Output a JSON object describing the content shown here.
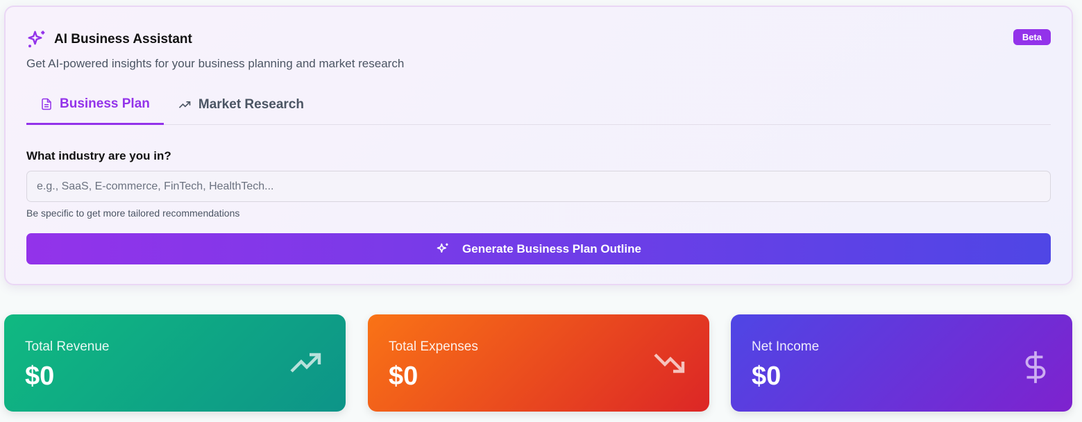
{
  "assistant": {
    "title": "AI Business Assistant",
    "badge": "Beta",
    "subtitle": "Get AI-powered insights for your business planning and market research",
    "tabs": [
      {
        "label": "Business Plan",
        "icon": "file-text-icon",
        "active": true
      },
      {
        "label": "Market Research",
        "icon": "trending-up-icon",
        "active": false
      }
    ],
    "field_label": "What industry are you in?",
    "input_value": "",
    "input_placeholder": "e.g., SaaS, E-commerce, FinTech, HealthTech...",
    "hint": "Be specific to get more tailored recommendations",
    "generate_label": "Generate Business Plan Outline",
    "accent": "#9333ea"
  },
  "stats": [
    {
      "label": "Total Revenue",
      "value": "$0",
      "icon": "trending-up-icon"
    },
    {
      "label": "Total Expenses",
      "value": "$0",
      "icon": "trending-down-icon"
    },
    {
      "label": "Net Income",
      "value": "$0",
      "icon": "dollar-sign-icon"
    }
  ]
}
